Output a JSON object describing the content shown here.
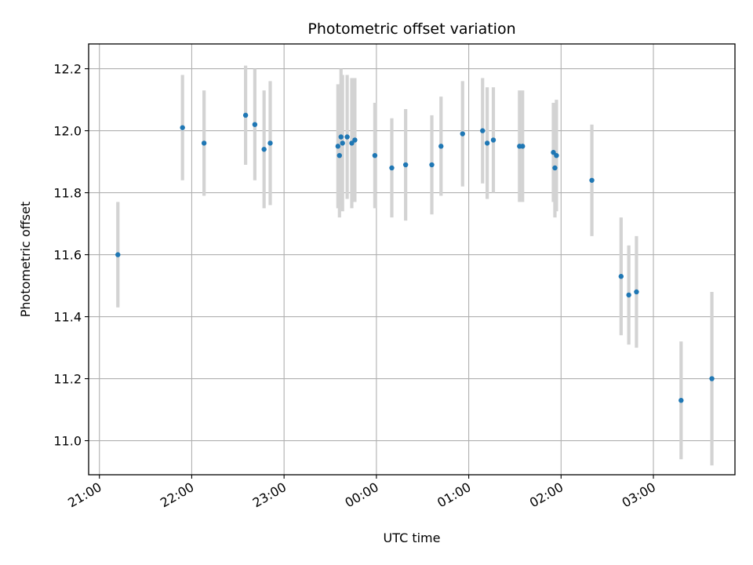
{
  "chart_data": {
    "type": "scatter",
    "title": "Photometric offset variation",
    "xlabel": "UTC time",
    "ylabel": "Photometric offset",
    "x_axis": "time",
    "x_ticks": [
      "21:00",
      "22:00",
      "23:00",
      "00:00",
      "01:00",
      "02:00",
      "03:00"
    ],
    "x_range": [
      "20:53",
      "03:53"
    ],
    "ylim": [
      10.89,
      12.28
    ],
    "y_ticks": [
      11.0,
      11.2,
      11.4,
      11.6,
      11.8,
      12.0,
      12.2
    ],
    "grid": true,
    "error_bars": true,
    "colors": {
      "points": "#1f77b4",
      "error_bars": "#d3d3d3",
      "grid": "#b0b0b0"
    },
    "series": [
      {
        "x": [
          "21:12",
          "21:54",
          "22:08",
          "22:35",
          "22:41",
          "22:47",
          "22:51",
          "23:35",
          "23:36",
          "23:37",
          "23:38",
          "23:41",
          "23:44",
          "23:46",
          "23:59",
          "00:10",
          "00:19",
          "00:36",
          "00:42",
          "00:56",
          "01:09",
          "01:12",
          "01:16",
          "01:33",
          "01:35",
          "01:55",
          "01:56",
          "01:57",
          "02:20",
          "02:39",
          "02:44",
          "02:49",
          "03:18",
          "03:38"
        ],
        "y": [
          11.6,
          12.01,
          11.96,
          12.05,
          12.02,
          11.94,
          11.96,
          11.95,
          11.92,
          11.98,
          11.96,
          11.98,
          11.96,
          11.97,
          11.92,
          11.88,
          11.89,
          11.89,
          11.95,
          11.99,
          12.0,
          11.96,
          11.97,
          11.95,
          11.95,
          11.93,
          11.88,
          11.92,
          11.84,
          11.53,
          11.47,
          11.48,
          11.13,
          11.2
        ],
        "yerr": [
          0.17,
          0.17,
          0.17,
          0.16,
          0.18,
          0.19,
          0.2,
          0.2,
          0.2,
          0.22,
          0.22,
          0.2,
          0.21,
          0.2,
          0.17,
          0.16,
          0.18,
          0.16,
          0.16,
          0.17,
          0.17,
          0.18,
          0.17,
          0.18,
          0.18,
          0.16,
          0.16,
          0.18,
          0.18,
          0.19,
          0.16,
          0.18,
          0.19,
          0.28
        ]
      }
    ]
  }
}
